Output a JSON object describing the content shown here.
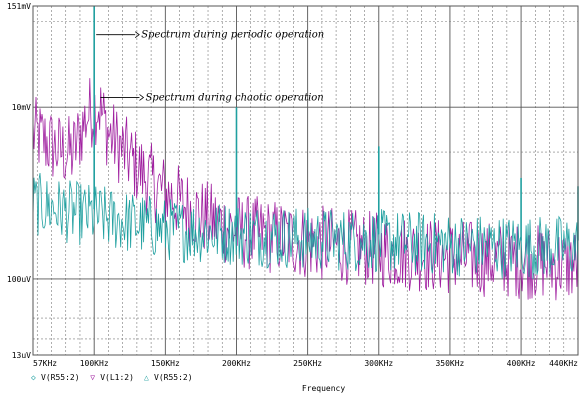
{
  "chart_data": {
    "type": "line",
    "title": "",
    "xlabel": "Frequency",
    "ylabel": "",
    "x_unit": "Hz",
    "xlim": [
      57000,
      440000
    ],
    "ylim": [
      1.3e-05,
      0.151
    ],
    "y_scale": "log",
    "x_tick_labels": [
      "57KHz",
      "100KHz",
      "150KHz",
      "200KHz",
      "250KHz",
      "300KHz",
      "350KHz",
      "400KHz",
      "440KHz"
    ],
    "x_tick_values": [
      57000,
      100000,
      150000,
      200000,
      250000,
      300000,
      350000,
      400000,
      440000
    ],
    "y_tick_labels": [
      "151mV",
      "10mV",
      "100uV",
      "13uV"
    ],
    "y_tick_values": [
      0.151,
      0.01,
      0.0001,
      1.3e-05
    ],
    "grid": true,
    "legend_position": "bottom-left",
    "legend": [
      {
        "symbol": "◇",
        "label": "V(R55:2)",
        "color": "#20a0a0"
      },
      {
        "symbol": "▽",
        "label": "V(L1:2)",
        "color": "#a020a0"
      },
      {
        "symbol": "△",
        "label": "V(R55:2)",
        "color": "#20a0a0"
      }
    ],
    "annotations": [
      {
        "text": "Spectrum during periodic operation",
        "x": 100000,
        "y": 0.07
      },
      {
        "text": "Spectrum during chaotic operation",
        "x": 103000,
        "y": 0.013
      }
    ],
    "series": [
      {
        "label_ref": "V(R55:2)",
        "color": "#20a0a0",
        "description": "periodic spectrum: noise floor plus harmonic spikes",
        "floor": [
          [
            57000,
            0.0009
          ],
          [
            70000,
            0.0008
          ],
          [
            85000,
            0.0007
          ],
          [
            100000,
            0.00065
          ],
          [
            150000,
            0.00045
          ],
          [
            200000,
            0.0004
          ],
          [
            250000,
            0.00035
          ],
          [
            300000,
            0.00033
          ],
          [
            350000,
            0.0003
          ],
          [
            400000,
            0.00028
          ],
          [
            440000,
            0.00028
          ]
        ],
        "peaks": [
          [
            100000,
            0.151
          ],
          [
            200000,
            0.01
          ],
          [
            300000,
            0.0035
          ],
          [
            400000,
            0.0015
          ],
          [
            440000,
            0.0012
          ]
        ]
      },
      {
        "label_ref": "V(L1:2)",
        "color": "#a020a0",
        "description": "chaotic spectrum: broadband envelope",
        "envelope": [
          [
            57000,
            0.0055
          ],
          [
            65000,
            0.0045
          ],
          [
            75000,
            0.0035
          ],
          [
            85000,
            0.0032
          ],
          [
            95000,
            0.009
          ],
          [
            103000,
            0.012
          ],
          [
            110000,
            0.0055
          ],
          [
            120000,
            0.0035
          ],
          [
            135000,
            0.0018
          ],
          [
            150000,
            0.0011
          ],
          [
            175000,
            0.0006
          ],
          [
            200000,
            0.0004
          ],
          [
            250000,
            0.0003
          ],
          [
            300000,
            0.00024
          ],
          [
            350000,
            0.0002
          ],
          [
            400000,
            0.00018
          ],
          [
            440000,
            0.00016
          ]
        ]
      }
    ]
  }
}
